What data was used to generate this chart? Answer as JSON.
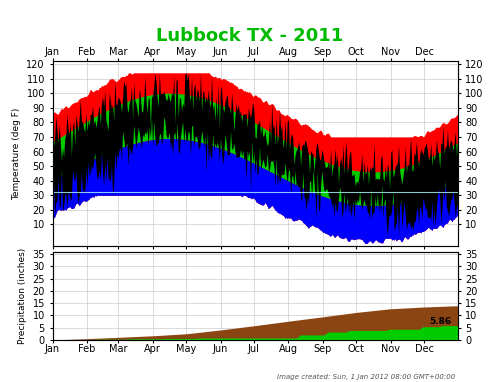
{
  "title": "Lubbock TX - 2011",
  "title_color": "#00BB00",
  "background_color": "#ffffff",
  "grid_color": "#cccccc",
  "temp_ylim": [
    -5,
    122
  ],
  "temp_yticks": [
    10,
    20,
    30,
    40,
    50,
    60,
    70,
    80,
    90,
    100,
    110,
    120
  ],
  "precip_ylim": [
    0,
    36
  ],
  "precip_yticks": [
    0,
    5,
    10,
    15,
    20,
    25,
    30,
    35
  ],
  "months": [
    "Jan",
    "Feb",
    "Mar",
    "Apr",
    "May",
    "Jun",
    "Jul",
    "Aug",
    "Sep",
    "Oct",
    "Nov",
    "Dec"
  ],
  "record_high_color": "#ff0000",
  "record_low_color": "#0000ff",
  "normal_color": "#00cc00",
  "observed_color": "#000000",
  "avg_precip_color": "#8B4513",
  "obs_precip_color": "#00cc00",
  "temp_ylabel": "Temperature (deg F)",
  "precip_ylabel": "Precipitation (inches)",
  "footer_text": "Image created: Sun, 1 Jan 2012 08:00 GMT+00:00",
  "precip_label": "5.86",
  "n_days": 365,
  "freeze_color": "#aaffff"
}
